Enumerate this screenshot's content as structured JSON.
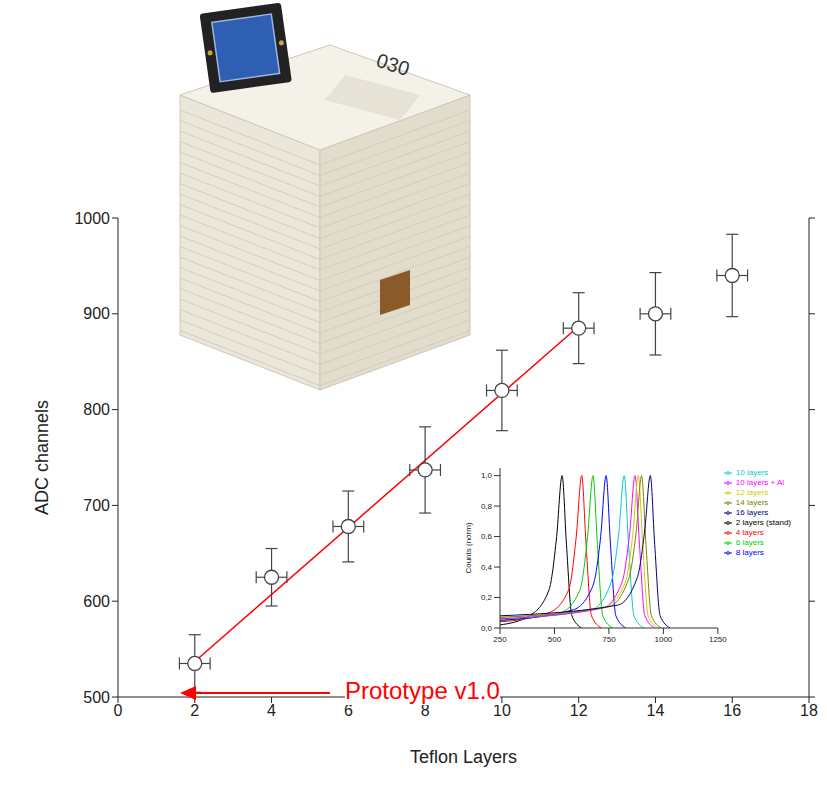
{
  "chart_data": [
    {
      "type": "scatter",
      "x_label": "Teflon Layers",
      "y_label": "ADC channels",
      "xlim": [
        0,
        18
      ],
      "xticks": [
        0,
        2,
        4,
        6,
        8,
        10,
        12,
        14,
        16,
        18
      ],
      "ylim": [
        500,
        1000
      ],
      "yticks": [
        500,
        600,
        700,
        800,
        900,
        1000
      ],
      "x": [
        2,
        4,
        6,
        8,
        10,
        12,
        14,
        16
      ],
      "values": [
        535,
        625,
        678,
        737,
        820,
        885,
        900,
        940
      ],
      "x_errors": [
        0.4,
        0.4,
        0.4,
        0.4,
        0.4,
        0.4,
        0.4,
        0.4
      ],
      "y_errors": [
        30,
        30,
        37,
        45,
        42,
        37,
        43,
        43
      ],
      "marker": "circle",
      "color": "#444444",
      "fit": {
        "type": "line",
        "x": [
          2,
          12
        ],
        "values": [
          537,
          887
        ],
        "color": "#ff0000"
      },
      "annotations": [
        {
          "text": "Prototype v1.0",
          "color": "#ff0000"
        }
      ],
      "photo_label": "030"
    },
    {
      "type": "line",
      "y_label": "Counts (norm)",
      "xlim": [
        250,
        1250
      ],
      "xticks": [
        250,
        500,
        750,
        1000,
        1250
      ],
      "ylim": [
        0,
        1.05
      ],
      "yticks": [
        {
          "value": 0,
          "label": "0,0"
        },
        {
          "value": 0.2,
          "label": "0,2"
        },
        {
          "value": 0.4,
          "label": "0,4"
        },
        {
          "value": 0.6,
          "label": "0,6"
        },
        {
          "value": 0.8,
          "label": "0,8"
        },
        {
          "value": 1,
          "label": "1,0"
        }
      ],
      "legend": "right",
      "series": [
        {
          "name": "2 layers (stand)",
          "color": "#000000",
          "x": [
            250,
            385,
            475,
            510,
            535,
            555,
            580,
            625
          ],
          "values": [
            0.02,
            0.08,
            0.25,
            0.6,
            1,
            0.55,
            0.08,
            0
          ]
        },
        {
          "name": "4 layers",
          "color": "#ff0000",
          "x": [
            250,
            475,
            565,
            600,
            625,
            645,
            670,
            715
          ],
          "values": [
            0.04,
            0.1,
            0.25,
            0.6,
            1,
            0.55,
            0.08,
            0
          ]
        },
        {
          "name": "6 layers",
          "color": "#00cc00",
          "x": [
            250,
            527,
            617,
            652,
            677,
            697,
            722,
            767
          ],
          "values": [
            0.05,
            0.1,
            0.25,
            0.6,
            1,
            0.55,
            0.08,
            0
          ]
        },
        {
          "name": "8 layers",
          "color": "#0000ff",
          "x": [
            250,
            587,
            677,
            712,
            737,
            757,
            782,
            827
          ],
          "values": [
            0.05,
            0.12,
            0.28,
            0.6,
            1,
            0.55,
            0.08,
            0
          ]
        },
        {
          "name": "10 layers",
          "color": "#00cccc",
          "x": [
            250,
            670,
            760,
            795,
            820,
            840,
            865,
            910
          ],
          "values": [
            0.06,
            0.12,
            0.3,
            0.62,
            1,
            0.55,
            0.08,
            0
          ]
        },
        {
          "name": "10 layers + Al",
          "color": "#ff00ff",
          "x": [
            250,
            720,
            810,
            845,
            870,
            890,
            915,
            960
          ],
          "values": [
            0.06,
            0.13,
            0.3,
            0.62,
            1,
            0.55,
            0.08,
            0
          ]
        },
        {
          "name": "12 layers",
          "color": "#cccc00",
          "x": [
            250,
            735,
            825,
            860,
            885,
            905,
            930,
            975
          ],
          "values": [
            0.07,
            0.14,
            0.3,
            0.62,
            1,
            0.55,
            0.08,
            0
          ]
        },
        {
          "name": "14 layers",
          "color": "#808000",
          "x": [
            250,
            750,
            840,
            875,
            900,
            920,
            945,
            990
          ],
          "values": [
            0.07,
            0.14,
            0.32,
            0.63,
            1,
            0.55,
            0.08,
            0
          ]
        },
        {
          "name": "16 layers",
          "color": "#000080",
          "x": [
            250,
            790,
            880,
            915,
            940,
            960,
            985,
            1030
          ],
          "values": [
            0.08,
            0.15,
            0.33,
            0.65,
            1,
            0.55,
            0.08,
            0
          ]
        }
      ]
    }
  ]
}
